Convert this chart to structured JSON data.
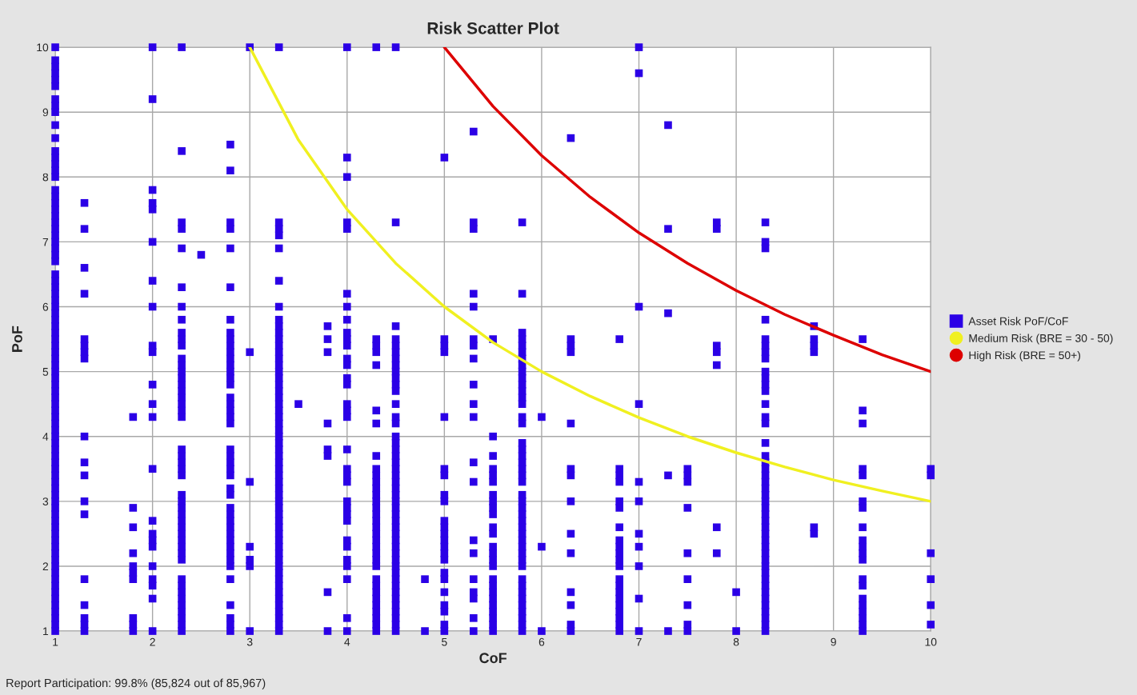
{
  "chart_data": {
    "type": "scatter",
    "title": "Risk Scatter Plot",
    "xlabel": "CoF",
    "ylabel": "PoF",
    "xlim": [
      1,
      10
    ],
    "ylim": [
      1,
      10
    ],
    "xticks": [
      1,
      2,
      3,
      4,
      5,
      6,
      7,
      8,
      9,
      10
    ],
    "yticks": [
      1,
      2,
      3,
      4,
      5,
      6,
      7,
      8,
      9,
      10
    ],
    "grid": true,
    "legend": "right",
    "marker": "square",
    "annotations": [
      "Report Participation: 99.8% (85,824 out of 85,967)"
    ],
    "series": [
      {
        "name": "Asset Risk PoF/CoF",
        "type": "scatter",
        "color": "#2b00e6",
        "x": [
          1,
          1,
          1,
          1,
          1,
          1,
          1,
          1,
          1,
          1,
          1,
          1,
          1,
          1,
          1,
          1,
          1,
          1,
          1,
          1,
          1,
          1,
          1,
          1,
          1,
          1,
          1,
          1,
          1,
          1,
          1,
          1,
          1,
          1,
          1,
          1,
          1,
          1,
          1,
          1,
          1,
          1,
          1,
          1,
          1,
          1,
          1,
          1,
          1,
          1,
          1,
          1,
          1,
          1,
          1,
          1,
          1,
          1,
          1,
          1,
          1,
          1,
          1,
          1,
          1,
          1,
          1,
          1,
          1,
          1,
          1,
          1,
          1,
          1,
          1,
          1,
          1,
          1,
          1,
          1,
          1,
          1,
          1,
          1
        ],
        "values": [
          10,
          9.8,
          9.7,
          9.6,
          9.5,
          9.4,
          9.2,
          9.1,
          9,
          8.8,
          8.6,
          8.4,
          8.3,
          8.2,
          8.1,
          8,
          7.8,
          7.7,
          7.6,
          7.5,
          7.4,
          7.3,
          7.2,
          7.1,
          7,
          6.9,
          6.8,
          6.7,
          6.5,
          6.4,
          6.3,
          6.2,
          6.1,
          6,
          5.9,
          5.8,
          5.7,
          5.6,
          5.5,
          5.4,
          5.3,
          5.2,
          5.1,
          5,
          4.9,
          4.8,
          4.7,
          4.6,
          4.5,
          4.4,
          4.3,
          4.2,
          4.1,
          4,
          3.9,
          3.8,
          3.7,
          3.6,
          3.5,
          3.4,
          3.3,
          3.2,
          3.1,
          3,
          2.9,
          2.8,
          2.7,
          2.6,
          2.5,
          2.4,
          2.3,
          2.2,
          2.1,
          2,
          1.9,
          1.8,
          1.7,
          1.6,
          1.5,
          1.4,
          1.3,
          1.2,
          1.1,
          1
        ]
      },
      {
        "type": "scatter",
        "color": "#2b00e6",
        "x": [
          1.3,
          1.3,
          1.3,
          1.3,
          1.3,
          1.3,
          1.3,
          1.3,
          1.3,
          1.3,
          1.3,
          1.3,
          1.3,
          1.3,
          1.3,
          1.3,
          1.3,
          1.3
        ],
        "values": [
          7.6,
          7.2,
          6.6,
          6.2,
          5.5,
          5.4,
          5.3,
          5.2,
          4,
          3.6,
          3.4,
          3,
          2.8,
          1.8,
          1.4,
          1.2,
          1.1,
          1
        ]
      },
      {
        "type": "scatter",
        "color": "#2b00e6",
        "x": [
          1.8,
          1.8,
          1.8,
          1.8,
          1.8,
          1.8,
          1.8,
          1.8,
          1.8,
          1.8
        ],
        "values": [
          4.3,
          2.9,
          2.6,
          2.2,
          2,
          1.9,
          1.8,
          1.2,
          1.1,
          1
        ]
      },
      {
        "type": "scatter",
        "color": "#2b00e6",
        "x": [
          2,
          2,
          2,
          2,
          2,
          2,
          2,
          2,
          2,
          2,
          2,
          2,
          2,
          2,
          2,
          2,
          2,
          2,
          2,
          2,
          2,
          2,
          2
        ],
        "values": [
          10,
          9.2,
          7.8,
          7.6,
          7.5,
          7,
          6.4,
          6,
          5.4,
          5.3,
          4.8,
          4.5,
          4.3,
          3.5,
          2.7,
          2.5,
          2.4,
          2.3,
          2,
          1.8,
          1.7,
          1.5,
          1
        ]
      },
      {
        "type": "scatter",
        "color": "#2b00e6",
        "x": [
          2.3,
          2.3,
          2.3,
          2.3,
          2.3,
          2.3,
          2.3,
          2.3,
          2.3,
          2.3,
          2.3,
          2.3,
          2.3,
          2.3,
          2.3,
          2.3,
          2.3,
          2.3,
          2.3,
          2.3,
          2.3,
          2.3,
          2.3,
          2.3,
          2.3,
          2.3,
          2.3,
          2.3,
          2.3,
          2.3,
          2.3,
          2.3,
          2.3,
          2.3,
          2.3,
          2.3,
          2.3,
          2.3,
          2.3,
          2.3,
          2.3,
          2.3,
          2.3,
          2.3,
          2.3,
          2.3
        ],
        "values": [
          10,
          8.4,
          7.3,
          7.2,
          6.9,
          6.3,
          6,
          5.8,
          5.6,
          5.5,
          5.4,
          5.2,
          5.1,
          5,
          4.9,
          4.8,
          4.7,
          4.6,
          4.5,
          4.4,
          4.3,
          3.8,
          3.7,
          3.6,
          3.5,
          3.4,
          3.1,
          3,
          2.9,
          2.8,
          2.7,
          2.6,
          2.5,
          2.4,
          2.3,
          2.2,
          2.1,
          1.8,
          1.7,
          1.6,
          1.5,
          1.4,
          1.3,
          1.2,
          1.1,
          1
        ]
      },
      {
        "type": "scatter",
        "color": "#2b00e6",
        "x": [
          2.5
        ],
        "values": [
          6.8
        ]
      },
      {
        "type": "scatter",
        "color": "#2b00e6",
        "x": [
          2.8,
          2.8,
          2.8,
          2.8,
          2.8,
          2.8,
          2.8,
          2.8,
          2.8,
          2.8,
          2.8,
          2.8,
          2.8,
          2.8,
          2.8,
          2.8,
          2.8,
          2.8,
          2.8,
          2.8,
          2.8,
          2.8,
          2.8,
          2.8,
          2.8,
          2.8,
          2.8,
          2.8,
          2.8,
          2.8,
          2.8,
          2.8,
          2.8,
          2.8,
          2.8,
          2.8,
          2.8,
          2.8,
          2.8,
          2.8,
          2.8,
          2.8,
          2.8
        ],
        "values": [
          8.5,
          8.1,
          7.3,
          7.2,
          6.9,
          6.3,
          5.8,
          5.6,
          5.5,
          5.4,
          5.3,
          5.2,
          5.1,
          5,
          4.9,
          4.8,
          4.6,
          4.5,
          4.4,
          4.3,
          4.2,
          3.8,
          3.7,
          3.6,
          3.5,
          3.4,
          3.2,
          3.1,
          2.9,
          2.8,
          2.7,
          2.6,
          2.5,
          2.4,
          2.3,
          2.2,
          2.1,
          2,
          1.8,
          1.4,
          1.2,
          1.1,
          1
        ]
      },
      {
        "type": "scatter",
        "color": "#2b00e6",
        "x": [
          3,
          3,
          3,
          3,
          3,
          3,
          3
        ],
        "values": [
          10,
          5.3,
          3.3,
          2.3,
          2.1,
          2,
          1
        ]
      },
      {
        "type": "scatter",
        "color": "#2b00e6",
        "x": [
          3.3,
          3.3,
          3.3,
          3.3,
          3.3,
          3.3,
          3.3,
          3.3,
          3.3,
          3.3,
          3.3,
          3.3,
          3.3,
          3.3,
          3.3,
          3.3,
          3.3,
          3.3,
          3.3,
          3.3,
          3.3,
          3.3,
          3.3,
          3.3,
          3.3,
          3.3,
          3.3,
          3.3,
          3.3,
          3.3,
          3.3,
          3.3,
          3.3,
          3.3,
          3.3,
          3.3,
          3.3,
          3.3,
          3.3,
          3.3,
          3.3,
          3.3,
          3.3,
          3.3,
          3.3,
          3.3,
          3.3,
          3.3,
          3.3,
          3.3,
          3.3,
          3.3,
          3.3,
          3.3,
          3.3,
          3.3
        ],
        "values": [
          10,
          7.3,
          7.2,
          7.1,
          6.9,
          6.4,
          6,
          5.8,
          5.7,
          5.6,
          5.5,
          5.4,
          5.3,
          5.2,
          5.1,
          5,
          4.9,
          4.8,
          4.7,
          4.6,
          4.5,
          4.4,
          4.3,
          4.2,
          4.1,
          4,
          3.9,
          3.8,
          3.7,
          3.6,
          3.5,
          3.4,
          3.3,
          3.2,
          3.1,
          3,
          2.9,
          2.8,
          2.7,
          2.6,
          2.5,
          2.4,
          2.3,
          2.2,
          2.1,
          2,
          1.9,
          1.8,
          1.7,
          1.6,
          1.5,
          1.4,
          1.3,
          1.2,
          1.1,
          1
        ]
      },
      {
        "type": "scatter",
        "color": "#2b00e6",
        "x": [
          3.5
        ],
        "values": [
          4.5
        ]
      },
      {
        "type": "scatter",
        "color": "#2b00e6",
        "x": [
          3.8,
          3.8,
          3.8,
          3.8,
          3.8,
          3.8,
          3.8,
          3.8
        ],
        "values": [
          5.7,
          5.5,
          5.3,
          4.2,
          3.8,
          3.7,
          1.6,
          1
        ]
      },
      {
        "type": "scatter",
        "color": "#2b00e6",
        "x": [
          4,
          4,
          4,
          4,
          4,
          4,
          4,
          4,
          4,
          4,
          4,
          4,
          4,
          4,
          4,
          4,
          4,
          4,
          4,
          4,
          4,
          4,
          4,
          4,
          4,
          4,
          4,
          4,
          4,
          4,
          4,
          4,
          4
        ],
        "values": [
          10,
          8.3,
          8,
          7.3,
          7.2,
          6.2,
          6,
          5.8,
          5.6,
          5.5,
          5.4,
          5.2,
          5.1,
          4.9,
          4.8,
          4.5,
          4.4,
          4.3,
          3.8,
          3.5,
          3.4,
          3.3,
          3,
          2.9,
          2.8,
          2.7,
          2.4,
          2.3,
          2.1,
          2,
          1.8,
          1.2,
          1
        ]
      },
      {
        "type": "scatter",
        "color": "#2b00e6",
        "x": [
          4.3,
          4.3,
          4.3,
          4.3,
          4.3,
          4.3,
          4.3,
          4.3,
          4.3,
          4.3,
          4.3,
          4.3,
          4.3,
          4.3,
          4.3,
          4.3,
          4.3,
          4.3,
          4.3,
          4.3,
          4.3,
          4.3,
          4.3,
          4.3,
          4.3,
          4.3,
          4.3,
          4.3,
          4.3,
          4.3,
          4.3,
          4.3,
          4.3
        ],
        "values": [
          10,
          5.5,
          5.4,
          5.3,
          5.1,
          4.4,
          4.2,
          3.7,
          3.5,
          3.4,
          3.3,
          3.2,
          3.1,
          3,
          2.9,
          2.8,
          2.7,
          2.6,
          2.5,
          2.4,
          2.3,
          2.2,
          2.1,
          2,
          1.8,
          1.7,
          1.6,
          1.5,
          1.4,
          1.3,
          1.2,
          1.1,
          1
        ]
      },
      {
        "type": "scatter",
        "color": "#2b00e6",
        "x": [
          4.5,
          4.5,
          4.5,
          4.5,
          4.5,
          4.5,
          4.5,
          4.5,
          4.5,
          4.5,
          4.5,
          4.5,
          4.5,
          4.5,
          4.5,
          4.5,
          4.5,
          4.5,
          4.5,
          4.5,
          4.5,
          4.5,
          4.5,
          4.5,
          4.5,
          4.5,
          4.5,
          4.5,
          4.5,
          4.5,
          4.5,
          4.5,
          4.5,
          4.5,
          4.5,
          4.5,
          4.5,
          4.5,
          4.5,
          4.5,
          4.5,
          4.5,
          4.5,
          4.5,
          4.5,
          4.5
        ],
        "values": [
          10,
          7.3,
          5.7,
          5.5,
          5.4,
          5.3,
          5.2,
          5.1,
          5,
          4.9,
          4.8,
          4.7,
          4.5,
          4.3,
          4.2,
          4,
          3.9,
          3.8,
          3.7,
          3.6,
          3.5,
          3.4,
          3.3,
          3.2,
          3.1,
          3,
          2.9,
          2.8,
          2.7,
          2.6,
          2.5,
          2.4,
          2.3,
          2.2,
          2.1,
          2,
          1.9,
          1.8,
          1.7,
          1.6,
          1.5,
          1.4,
          1.3,
          1.2,
          1.1,
          1
        ]
      },
      {
        "type": "scatter",
        "color": "#2b00e6",
        "x": [
          4.8,
          4.8
        ],
        "values": [
          1.8,
          1
        ]
      },
      {
        "type": "scatter",
        "color": "#2b00e6",
        "x": [
          5,
          5,
          5,
          5,
          5,
          5,
          5,
          5,
          5,
          5,
          5,
          5,
          5,
          5,
          5,
          5,
          5,
          5,
          5,
          5,
          5,
          5,
          5
        ],
        "values": [
          8.3,
          5.5,
          5.4,
          5.3,
          4.3,
          3.5,
          3.4,
          3.1,
          3,
          2.7,
          2.6,
          2.5,
          2.4,
          2.3,
          2.2,
          2.1,
          1.9,
          1.8,
          1.6,
          1.4,
          1.3,
          1.1,
          1
        ]
      },
      {
        "type": "scatter",
        "color": "#2b00e6",
        "x": [
          5.3,
          5.3,
          5.3,
          5.3,
          5.3,
          5.3,
          5.3,
          5.3,
          5.3,
          5.3,
          5.3,
          5.3,
          5.3,
          5.3,
          5.3,
          5.3,
          5.3,
          5.3,
          5.3,
          5.3
        ],
        "values": [
          8.7,
          7.3,
          7.2,
          6.2,
          6,
          5.5,
          5.4,
          5.2,
          4.8,
          4.5,
          4.3,
          3.6,
          3.3,
          2.4,
          2.2,
          1.8,
          1.6,
          1.5,
          1.2,
          1
        ]
      },
      {
        "type": "scatter",
        "color": "#2b00e6",
        "x": [
          5.5,
          5.5,
          5.5,
          5.5,
          5.5,
          5.5,
          5.5,
          5.5,
          5.5,
          5.5,
          5.5,
          5.5,
          5.5,
          5.5,
          5.5,
          5.5,
          5.5,
          5.5,
          5.5,
          5.5,
          5.5,
          5.5,
          5.5,
          5.5,
          5.5
        ],
        "values": [
          5.5,
          4,
          3.7,
          3.5,
          3.4,
          3.3,
          3.1,
          3,
          2.9,
          2.8,
          2.6,
          2.5,
          2.3,
          2.2,
          2.1,
          2,
          1.8,
          1.7,
          1.6,
          1.5,
          1.4,
          1.3,
          1.2,
          1.1,
          1
        ]
      },
      {
        "type": "scatter",
        "color": "#2b00e6",
        "x": [
          5.8,
          5.8,
          5.8,
          5.8,
          5.8,
          5.8,
          5.8,
          5.8,
          5.8,
          5.8,
          5.8,
          5.8,
          5.8,
          5.8,
          5.8,
          5.8,
          5.8,
          5.8,
          5.8,
          5.8,
          5.8,
          5.8,
          5.8,
          5.8,
          5.8,
          5.8,
          5.8,
          5.8,
          5.8,
          5.8,
          5.8,
          5.8,
          5.8,
          5.8,
          5.8,
          5.8,
          5.8,
          5.8,
          5.8,
          5.8,
          5.8,
          5.8,
          5.8,
          5.8
        ],
        "values": [
          7.3,
          6.2,
          5.6,
          5.5,
          5.4,
          5.3,
          5.2,
          5.1,
          5,
          4.9,
          4.8,
          4.7,
          4.6,
          4.5,
          4.3,
          4.2,
          3.9,
          3.8,
          3.7,
          3.6,
          3.5,
          3.4,
          3.3,
          3.1,
          3,
          2.9,
          2.8,
          2.7,
          2.6,
          2.5,
          2.4,
          2.3,
          2.2,
          2.1,
          2,
          1.8,
          1.7,
          1.6,
          1.5,
          1.4,
          1.3,
          1.2,
          1.1,
          1
        ]
      },
      {
        "type": "scatter",
        "color": "#2b00e6",
        "x": [
          6,
          6,
          6
        ],
        "values": [
          4.3,
          2.3,
          1
        ]
      },
      {
        "type": "scatter",
        "color": "#2b00e6",
        "x": [
          6.3,
          6.3,
          6.3,
          6.3,
          6.3,
          6.3,
          6.3,
          6.3,
          6.3,
          6.3,
          6.3,
          6.3,
          6.3,
          6.3
        ],
        "values": [
          8.6,
          5.5,
          5.4,
          5.3,
          4.2,
          3.5,
          3.4,
          3,
          2.5,
          2.2,
          1.6,
          1.4,
          1.1,
          1
        ]
      },
      {
        "type": "scatter",
        "color": "#2b00e6",
        "x": [
          6.8,
          6.8,
          6.8,
          6.8,
          6.8,
          6.8,
          6.8,
          6.8,
          6.8,
          6.8,
          6.8,
          6.8,
          6.8,
          6.8,
          6.8,
          6.8,
          6.8,
          6.8,
          6.8,
          6.8,
          6.8
        ],
        "values": [
          5.5,
          3.5,
          3.4,
          3.3,
          3,
          2.9,
          2.6,
          2.4,
          2.3,
          2.2,
          2.1,
          2,
          1.8,
          1.7,
          1.6,
          1.5,
          1.4,
          1.3,
          1.2,
          1.1,
          1
        ]
      },
      {
        "type": "scatter",
        "color": "#2b00e6",
        "x": [
          7,
          7,
          7,
          7,
          7,
          7,
          7,
          7,
          7,
          7,
          7
        ],
        "values": [
          10,
          9.6,
          6,
          4.5,
          3.3,
          3,
          2.5,
          2.3,
          2,
          1.5,
          1
        ]
      },
      {
        "type": "scatter",
        "color": "#2b00e6",
        "x": [
          7.3,
          7.3,
          7.3,
          7.3,
          7.3
        ],
        "values": [
          8.8,
          7.2,
          5.9,
          3.4,
          1
        ]
      },
      {
        "type": "scatter",
        "color": "#2b00e6",
        "x": [
          7.5,
          7.5,
          7.5,
          7.5,
          7.5,
          7.5,
          7.5,
          7.5,
          7.5
        ],
        "values": [
          3.5,
          3.4,
          3.3,
          2.9,
          2.2,
          1.8,
          1.4,
          1.1,
          1
        ]
      },
      {
        "type": "scatter",
        "color": "#2b00e6",
        "x": [
          7.8,
          7.8,
          7.8,
          7.8,
          7.8,
          7.8,
          7.8
        ],
        "values": [
          7.3,
          7.2,
          5.4,
          5.3,
          5.1,
          2.6,
          2.2
        ]
      },
      {
        "type": "scatter",
        "color": "#2b00e6",
        "x": [
          8,
          8
        ],
        "values": [
          1.6,
          1
        ]
      },
      {
        "type": "scatter",
        "color": "#2b00e6",
        "x": [
          8.3,
          8.3,
          8.3,
          8.3,
          8.3,
          8.3,
          8.3,
          8.3,
          8.3,
          8.3,
          8.3,
          8.3,
          8.3,
          8.3,
          8.3,
          8.3,
          8.3,
          8.3,
          8.3,
          8.3,
          8.3,
          8.3,
          8.3,
          8.3,
          8.3,
          8.3,
          8.3,
          8.3,
          8.3,
          8.3,
          8.3,
          8.3,
          8.3,
          8.3,
          8.3,
          8.3,
          8.3,
          8.3,
          8.3,
          8.3,
          8.3,
          8.3,
          8.3,
          8.3
        ],
        "values": [
          7.3,
          7,
          6.9,
          5.8,
          5.5,
          5.4,
          5.3,
          5.2,
          5,
          4.9,
          4.8,
          4.7,
          4.5,
          4.3,
          4.2,
          3.9,
          3.7,
          3.6,
          3.5,
          3.4,
          3.3,
          3.2,
          3.1,
          3,
          2.9,
          2.8,
          2.7,
          2.6,
          2.5,
          2.4,
          2.3,
          2.2,
          2.1,
          2,
          1.9,
          1.8,
          1.7,
          1.6,
          1.5,
          1.4,
          1.3,
          1.2,
          1.1,
          1
        ]
      },
      {
        "type": "scatter",
        "color": "#2b00e6",
        "x": [
          8.8,
          8.8,
          8.8,
          8.8,
          8.8,
          8.8
        ],
        "values": [
          5.7,
          5.5,
          5.4,
          5.3,
          2.6,
          2.5
        ]
      },
      {
        "type": "scatter",
        "color": "#2b00e6",
        "x": [
          9.3,
          9.3,
          9.3,
          9.3,
          9.3,
          9.3,
          9.3,
          9.3,
          9.3,
          9.3,
          9.3,
          9.3,
          9.3,
          9.3,
          9.3,
          9.3,
          9.3,
          9.3,
          9.3,
          9.3
        ],
        "values": [
          5.5,
          4.4,
          4.2,
          3.5,
          3.4,
          3,
          2.9,
          2.6,
          2.4,
          2.3,
          2.2,
          2.1,
          1.8,
          1.7,
          1.5,
          1.4,
          1.3,
          1.2,
          1.1,
          1
        ]
      },
      {
        "type": "scatter",
        "color": "#2b00e6",
        "x": [
          10,
          10,
          10,
          10,
          10,
          10
        ],
        "values": [
          3.5,
          3.4,
          2.2,
          1.8,
          1.4,
          1.1
        ]
      },
      {
        "name": "Medium Risk (BRE = 30 - 50)",
        "type": "line",
        "color": "#f0f020",
        "marker": "none",
        "x": [
          3,
          3.5,
          4,
          4.5,
          5,
          5.5,
          6,
          6.5,
          7,
          7.5,
          8,
          8.5,
          9,
          9.5,
          10
        ],
        "values": [
          10,
          8.57,
          7.5,
          6.67,
          6,
          5.45,
          5,
          4.62,
          4.29,
          4,
          3.75,
          3.53,
          3.33,
          3.16,
          3
        ]
      },
      {
        "name": "High Risk (BRE = 50+)",
        "type": "line",
        "color": "#dd0000",
        "marker": "none",
        "x": [
          5,
          5.5,
          6,
          6.5,
          7,
          7.5,
          8,
          8.5,
          9,
          9.5,
          10
        ],
        "values": [
          10,
          9.09,
          8.33,
          7.69,
          7.14,
          6.67,
          6.25,
          5.88,
          5.56,
          5.26,
          5
        ]
      }
    ]
  }
}
